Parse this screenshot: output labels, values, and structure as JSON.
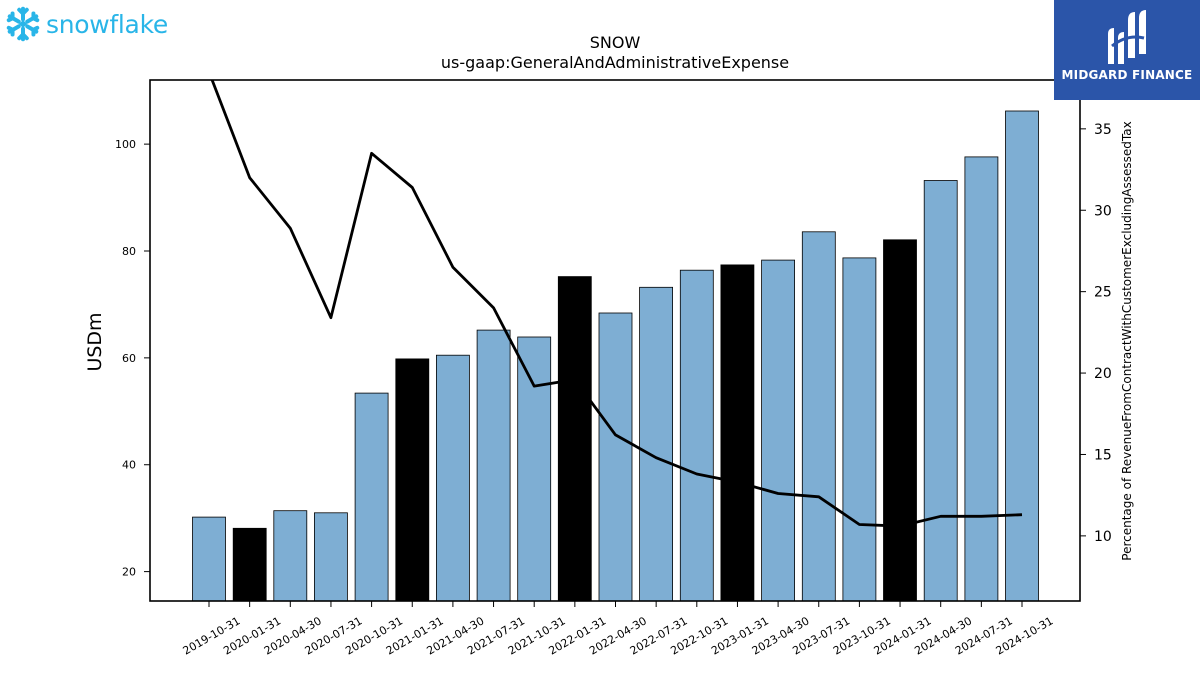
{
  "brand_left": {
    "name": "snowflake",
    "icon": "snowflake-icon",
    "color": "#29b5e8"
  },
  "brand_right": {
    "name": "MIDGARD FINANCE",
    "icon": "midgard-logo-icon",
    "color": "#2b55a9"
  },
  "chart_data": {
    "type": "bar",
    "title": "SNOW",
    "subtitle": "us-gaap:GeneralAndAdministrativeExpense",
    "ylabel": "USDm",
    "y2label": "Percentage of RevenueFromContractWithCustomerExcludingAssessedTax",
    "ylim": [
      14.5,
      112
    ],
    "y2lim": [
      6,
      38
    ],
    "yticks": [
      20,
      40,
      60,
      80,
      100
    ],
    "y2ticks": [
      10,
      15,
      20,
      25,
      30,
      35
    ],
    "grid": false,
    "categories": [
      "2019-10-31",
      "2020-01-31",
      "2020-04-30",
      "2020-07-31",
      "2020-10-31",
      "2021-01-31",
      "2021-04-30",
      "2021-07-31",
      "2021-10-31",
      "2022-01-31",
      "2022-04-30",
      "2022-07-31",
      "2022-10-31",
      "2023-01-31",
      "2023-04-30",
      "2023-07-31",
      "2023-10-31",
      "2024-01-31",
      "2024-04-30",
      "2024-07-31",
      "2024-10-31"
    ],
    "series": [
      {
        "kind": "bar",
        "axis": "left",
        "values": [
          30.2,
          28.1,
          31.4,
          31.0,
          53.4,
          59.8,
          60.5,
          65.2,
          63.9,
          75.2,
          68.4,
          73.2,
          76.4,
          77.4,
          78.3,
          83.6,
          78.7,
          82.1,
          93.2,
          97.6,
          106.2
        ],
        "colors": [
          "#7eaed3",
          "#000000",
          "#7eaed3",
          "#7eaed3",
          "#7eaed3",
          "#000000",
          "#7eaed3",
          "#7eaed3",
          "#7eaed3",
          "#000000",
          "#7eaed3",
          "#7eaed3",
          "#7eaed3",
          "#000000",
          "#7eaed3",
          "#7eaed3",
          "#7eaed3",
          "#000000",
          "#7eaed3",
          "#7eaed3",
          "#7eaed3"
        ]
      },
      {
        "kind": "line",
        "axis": "right",
        "color": "#000000",
        "values": [
          38.5,
          32.0,
          28.9,
          23.4,
          33.5,
          31.4,
          26.5,
          24.0,
          19.2,
          19.6,
          16.2,
          14.8,
          13.8,
          13.3,
          12.6,
          12.4,
          10.7,
          10.6,
          11.2,
          11.2,
          11.3
        ]
      }
    ]
  }
}
